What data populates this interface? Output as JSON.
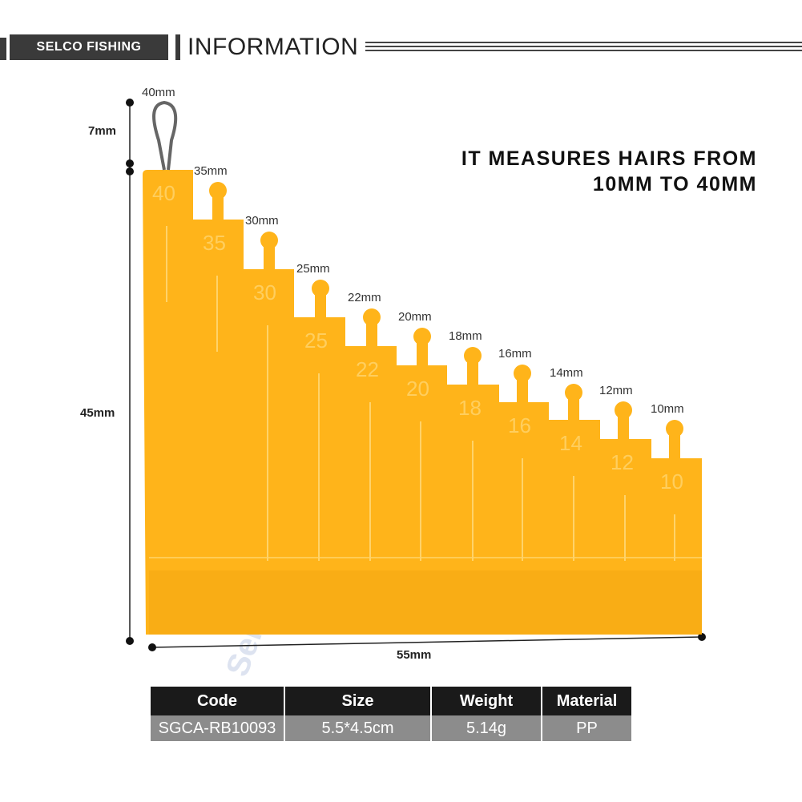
{
  "header": {
    "brand": "SELCO FISHING",
    "title": "INFORMATION"
  },
  "tagline": {
    "line1": "IT MEASURES HAIRS FROM",
    "line2": "10MM TO 40MM"
  },
  "dimensions": {
    "top": "7mm",
    "height": "45mm",
    "width": "55mm"
  },
  "tool": {
    "body_color": "#ffb41a",
    "loop_label": "40mm",
    "steps": [
      {
        "label": "40mm",
        "mark": "40"
      },
      {
        "label": "35mm",
        "mark": "35"
      },
      {
        "label": "30mm",
        "mark": "30"
      },
      {
        "label": "25mm",
        "mark": "25"
      },
      {
        "label": "22mm",
        "mark": "22"
      },
      {
        "label": "20mm",
        "mark": "20"
      },
      {
        "label": "18mm",
        "mark": "18"
      },
      {
        "label": "16mm",
        "mark": "16"
      },
      {
        "label": "14mm",
        "mark": "14"
      },
      {
        "label": "12mm",
        "mark": "12"
      },
      {
        "label": "10mm",
        "mark": "10"
      }
    ]
  },
  "watermark": "Selco",
  "spec_table": {
    "headers": [
      "Code",
      "Size",
      "Weight",
      "Material"
    ],
    "row": [
      "SGCA-RB10093",
      "5.5*4.5cm",
      "5.14g",
      "PP"
    ]
  }
}
